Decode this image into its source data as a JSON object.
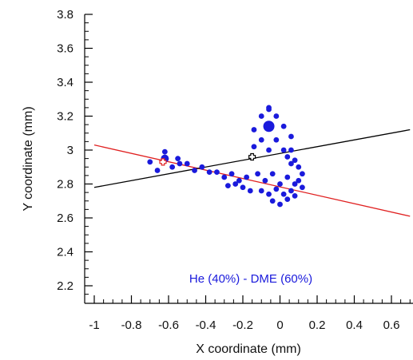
{
  "chart_data": {
    "type": "scatter",
    "title": "",
    "xlabel": "X coordinate (mm)",
    "ylabel": "Y coordinate (mm)",
    "xlim": [
      -1.0,
      0.7
    ],
    "ylim": [
      2.1,
      3.8
    ],
    "x_ticks": [
      -1,
      -0.8,
      -0.6,
      -0.4,
      -0.2,
      0,
      0.2,
      0.4,
      0.6
    ],
    "x_tick_labels": [
      "-1",
      "-0.8",
      "-0.6",
      "-0.4",
      "-0.2",
      "0",
      "0.2",
      "0.4",
      "0.6"
    ],
    "y_ticks": [
      2.2,
      2.4,
      2.6,
      2.8,
      3.0,
      3.2,
      3.4,
      3.6,
      3.8
    ],
    "y_tick_labels": [
      "2.2",
      "2.4",
      "2.6",
      "2.8",
      "3",
      "3.2",
      "3.4",
      "3.6",
      "3.8"
    ],
    "grid": false,
    "annotation": {
      "text": "He (40%) - DME (60%)",
      "color": "#1a1adc"
    },
    "point_color": "#1a1adc",
    "clusters": [
      {
        "x": [
          -0.62,
          -0.7,
          -0.62,
          -0.54,
          -0.66,
          -0.58,
          -0.55,
          -0.5,
          -0.46,
          -0.42,
          -0.38
        ],
        "y": [
          2.95,
          2.93,
          2.99,
          2.92,
          2.88,
          2.9,
          2.95,
          2.92,
          2.88,
          2.9,
          2.87
        ]
      },
      {
        "x": [
          -0.34,
          -0.3,
          -0.26,
          -0.22,
          -0.18,
          -0.28,
          -0.24,
          -0.2,
          -0.16
        ],
        "y": [
          2.87,
          2.84,
          2.86,
          2.82,
          2.84,
          2.79,
          2.8,
          2.78,
          2.76
        ]
      },
      {
        "x": [
          -0.12,
          -0.08,
          -0.04,
          0.0,
          0.04,
          0.08,
          0.12,
          -0.1,
          -0.06,
          -0.02,
          0.02,
          0.06,
          0.1,
          -0.04,
          0.0,
          0.04,
          0.08
        ],
        "y": [
          2.86,
          2.82,
          2.86,
          2.8,
          2.84,
          2.8,
          2.78,
          2.76,
          2.74,
          2.77,
          2.74,
          2.76,
          2.82,
          2.7,
          2.68,
          2.71,
          2.73
        ]
      },
      {
        "x": [
          -0.06,
          -0.1,
          -0.02,
          -0.14,
          -0.06,
          0.02,
          -0.1,
          -0.02,
          0.06,
          -0.14,
          -0.06,
          0.02,
          0.06,
          -0.06,
          0.04,
          0.08,
          0.1,
          0.12,
          0.06
        ],
        "y": [
          3.14,
          3.2,
          3.2,
          3.12,
          3.24,
          3.14,
          3.06,
          3.06,
          3.08,
          3.02,
          3.0,
          3.0,
          3.0,
          3.25,
          2.96,
          2.94,
          2.9,
          2.86,
          2.92
        ]
      }
    ],
    "large_points": [
      {
        "x": -0.06,
        "y": 3.14,
        "size": "large"
      },
      {
        "x": -0.62,
        "y": 2.95,
        "size": "medium"
      }
    ],
    "lines": [
      {
        "color": "#e02020",
        "x": [
          -1.0,
          0.7
        ],
        "y": [
          3.03,
          2.61
        ]
      },
      {
        "color": "#000000",
        "x": [
          -1.0,
          0.7
        ],
        "y": [
          2.78,
          3.12
        ]
      }
    ],
    "markers": [
      {
        "type": "cross",
        "x": -0.15,
        "y": 2.96,
        "color": "#000000"
      },
      {
        "type": "cross",
        "x": -0.63,
        "y": 2.93,
        "color": "#e02020"
      }
    ]
  }
}
